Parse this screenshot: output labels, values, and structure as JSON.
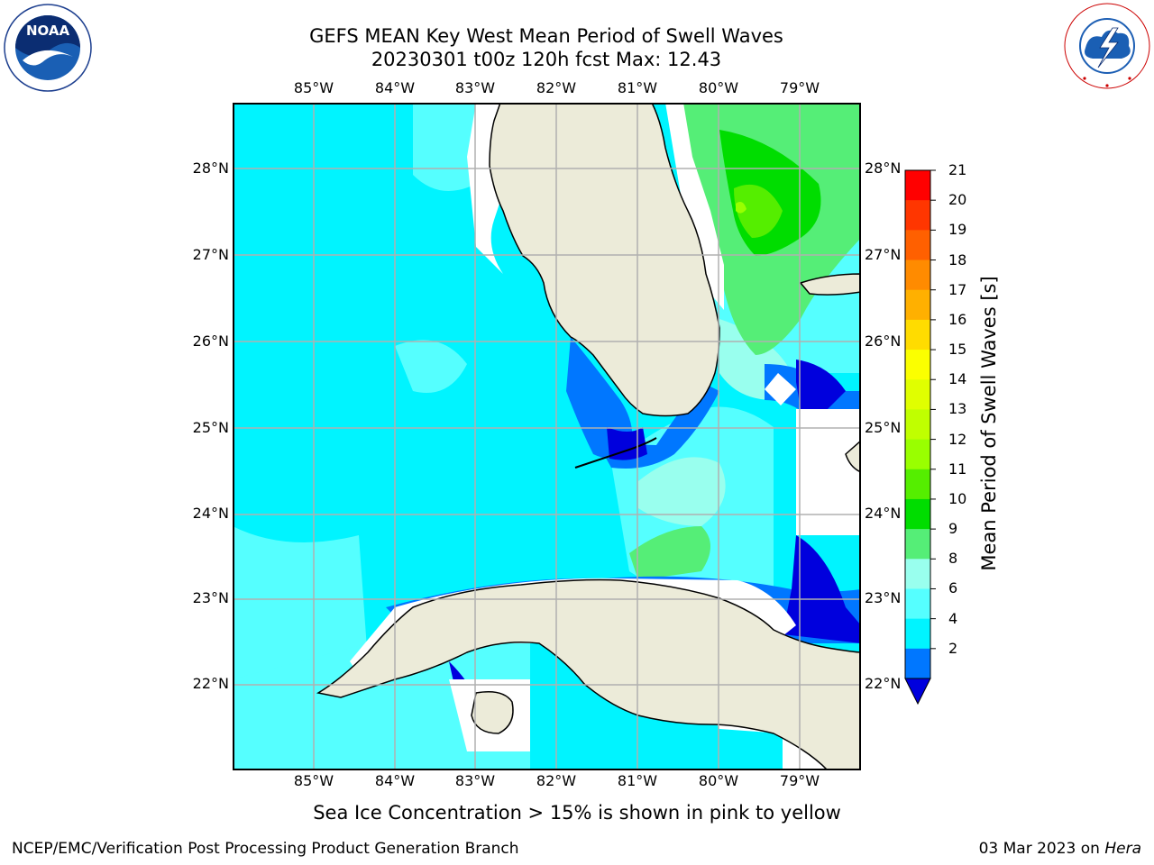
{
  "header": {
    "title_line1": "GEFS MEAN Key West Mean Period of Swell Waves",
    "title_line2": "20230301 t00z 120h fcst   Max: 12.43"
  },
  "logos": {
    "left": "NOAA",
    "left_ring_text": "NATIONAL OCEANIC AND ATMOSPHERIC ADMINISTRATION · U.S. DEPARTMENT OF COMMERCE",
    "right_ring_text": "NATIONAL WEATHER SERVICE"
  },
  "map": {
    "lon_ticks": [
      "85°W",
      "84°W",
      "83°W",
      "82°W",
      "81°W",
      "80°W",
      "79°W"
    ],
    "lat_ticks": [
      "28°N",
      "27°N",
      "26°N",
      "25°N",
      "24°N",
      "23°N",
      "22°N"
    ],
    "grid": true,
    "land_color": "#ecebd9",
    "no_data_color": "#ffffff"
  },
  "colorbar": {
    "title": "Mean Period of Swell Waves [s]",
    "labels": [
      "21",
      "20",
      "19",
      "18",
      "17",
      "16",
      "15",
      "14",
      "13",
      "12",
      "11",
      "10",
      "9",
      "8",
      "6",
      "4",
      "2"
    ],
    "colors": [
      "#ff0000",
      "#ff3600",
      "#ff6000",
      "#ff8b00",
      "#ffb000",
      "#ffdc00",
      "#fbff00",
      "#e0ff00",
      "#c0ff00",
      "#99ff00",
      "#55ee00",
      "#00dd00",
      "#55ee77",
      "#99ffee",
      "#55ffff",
      "#00f4ff",
      "#0077ff"
    ],
    "extend_color": "#0000dd"
  },
  "note": "Sea Ice Concentration > 15% is shown in pink to yellow",
  "footer": {
    "left": "NCEP/EMC/Verification Post Processing Product Generation Branch",
    "date": "03 Mar 2023 on ",
    "machine": "Hera"
  }
}
